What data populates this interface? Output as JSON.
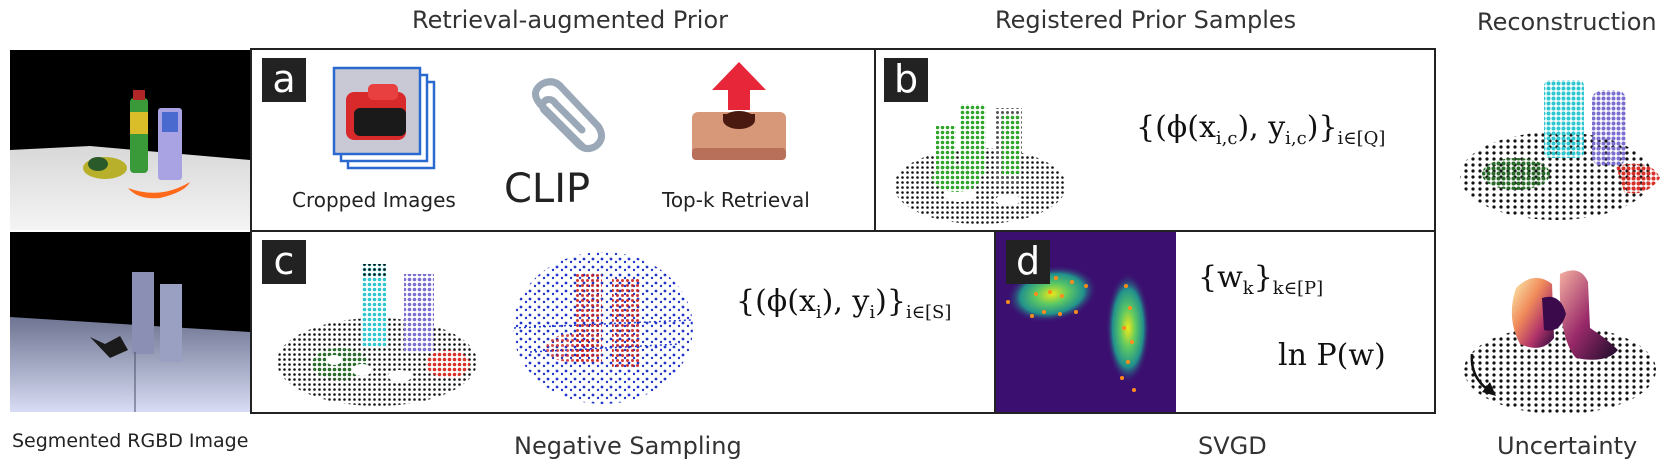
{
  "titles": {
    "retrieval": "Retrieval-augmented Prior",
    "registered": "Registered Prior Samples",
    "reconstruction": "Reconstruction",
    "segmented": "Segmented RGBD Image",
    "negative": "Negative Sampling",
    "svgd": "SVGD",
    "uncertainty": "Uncertainty"
  },
  "panels": {
    "a": {
      "badge": "a",
      "cropped_label": "Cropped Images",
      "clip_label": "CLIP",
      "topk_label": "Top-k Retrieval"
    },
    "b": {
      "badge": "b",
      "formula_main": "{(ϕ(x",
      "formula_sub1": "i,c",
      "formula_mid": "), y",
      "formula_sub2": "i,c",
      "formula_end": ")}",
      "formula_sub3": "i∈[Q]"
    },
    "c": {
      "badge": "c",
      "formula_main": "{(ϕ(x",
      "formula_sub1": "i",
      "formula_mid": "), y",
      "formula_sub2": "i",
      "formula_end": ")}",
      "formula_sub3": "i∈[S]"
    },
    "d": {
      "badge": "d",
      "weights_main": "{w",
      "weights_sub1": "k",
      "weights_end": "}",
      "weights_sub2": "k∈[P]",
      "logp": "ln P(w)"
    }
  },
  "colors": {
    "frame": "#222222",
    "green_points": "#2fa52a",
    "cyan_points": "#2ec7cf",
    "purple_points": "#7a6fd0",
    "red_points": "#d9302a",
    "blue_points": "#1f36c8",
    "viridis_dark": "#3b0f70",
    "particle": "#ff8c1a"
  }
}
